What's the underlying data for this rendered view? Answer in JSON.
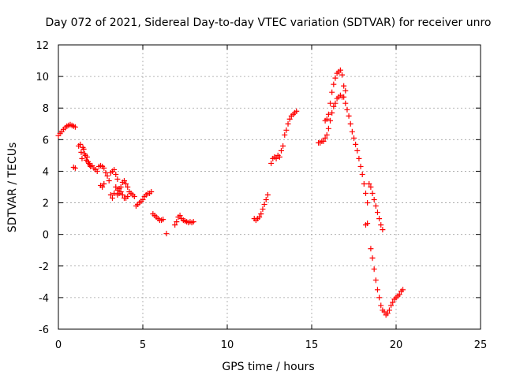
{
  "chart_data": {
    "type": "scatter",
    "title": "Day 072 of 2021, Sidereal Day-to-day VTEC variation (SDTVAR) for receiver unro",
    "xlabel": "GPS time / hours",
    "ylabel": "SDTVAR / TECUs",
    "xlim": [
      0,
      25
    ],
    "ylim": [
      -6,
      12
    ],
    "xticks": [
      0,
      5,
      10,
      15,
      20,
      25
    ],
    "yticks": [
      -6,
      -4,
      -2,
      0,
      2,
      4,
      6,
      8,
      10,
      12
    ],
    "xtick_labels": [
      "0",
      "5",
      "10",
      "15",
      "20",
      "25"
    ],
    "ytick_labels": [
      "-6",
      "-4",
      "-2",
      "0",
      "2",
      "4",
      "6",
      "8",
      "10",
      "12"
    ],
    "grid": true,
    "marker": "+",
    "color": "#ff0000",
    "series": [
      {
        "name": "SDTVAR",
        "segments": [
          [
            [
              0.0,
              6.25
            ],
            [
              0.1,
              6.4
            ],
            [
              0.2,
              6.5
            ],
            [
              0.3,
              6.65
            ],
            [
              0.4,
              6.75
            ],
            [
              0.5,
              6.85
            ],
            [
              0.6,
              6.9
            ],
            [
              0.7,
              6.95
            ],
            [
              0.8,
              6.9
            ],
            [
              0.9,
              6.85
            ],
            [
              1.0,
              6.8
            ]
          ],
          [
            [
              0.9,
              4.25
            ],
            [
              1.0,
              4.2
            ]
          ],
          [
            [
              1.2,
              5.6
            ],
            [
              1.3,
              5.7
            ],
            [
              1.35,
              5.2
            ],
            [
              1.4,
              4.8
            ],
            [
              1.45,
              5.5
            ],
            [
              1.5,
              5.4
            ],
            [
              1.55,
              5.1
            ],
            [
              1.6,
              5.0
            ],
            [
              1.65,
              4.7
            ],
            [
              1.7,
              4.9
            ],
            [
              1.75,
              4.6
            ],
            [
              1.8,
              4.5
            ],
            [
              1.85,
              4.4
            ],
            [
              1.9,
              4.3
            ],
            [
              2.0,
              4.35
            ],
            [
              2.1,
              4.2
            ],
            [
              2.2,
              4.1
            ],
            [
              2.3,
              4.0
            ],
            [
              2.4,
              4.3
            ],
            [
              2.5,
              4.35
            ],
            [
              2.6,
              4.3
            ],
            [
              2.7,
              4.2
            ],
            [
              2.8,
              3.9
            ],
            [
              2.9,
              3.7
            ],
            [
              3.0,
              3.4
            ],
            [
              3.1,
              3.9
            ],
            [
              3.2,
              4.0
            ],
            [
              3.3,
              4.1
            ],
            [
              3.4,
              3.8
            ],
            [
              3.5,
              3.5
            ]
          ],
          [
            [
              2.5,
              3.1
            ],
            [
              2.6,
              3.0
            ],
            [
              2.7,
              3.2
            ]
          ],
          [
            [
              3.1,
              2.5
            ],
            [
              3.2,
              2.3
            ],
            [
              3.3,
              2.6
            ],
            [
              3.4,
              3.0
            ],
            [
              3.5,
              2.8
            ],
            [
              3.6,
              2.9
            ],
            [
              3.7,
              3.0
            ],
            [
              3.8,
              3.3
            ],
            [
              3.9,
              3.4
            ],
            [
              4.0,
              3.2
            ],
            [
              4.1,
              3.0
            ],
            [
              4.2,
              2.7
            ],
            [
              4.3,
              2.6
            ],
            [
              4.4,
              2.5
            ],
            [
              4.5,
              2.4
            ]
          ],
          [
            [
              3.5,
              2.5
            ],
            [
              3.6,
              2.6
            ],
            [
              3.7,
              2.7
            ],
            [
              3.8,
              2.5
            ],
            [
              3.9,
              2.3
            ],
            [
              4.0,
              2.3
            ],
            [
              4.1,
              2.4
            ]
          ],
          [
            [
              4.6,
              1.8
            ],
            [
              4.7,
              1.9
            ],
            [
              4.8,
              2.0
            ],
            [
              4.9,
              2.1
            ],
            [
              5.0,
              2.2
            ],
            [
              5.1,
              2.4
            ],
            [
              5.2,
              2.5
            ],
            [
              5.3,
              2.6
            ],
            [
              5.4,
              2.6
            ],
            [
              5.5,
              2.7
            ]
          ],
          [
            [
              5.6,
              1.3
            ],
            [
              5.7,
              1.2
            ],
            [
              5.8,
              1.1
            ],
            [
              5.9,
              1.0
            ],
            [
              6.0,
              0.9
            ],
            [
              6.1,
              0.9
            ],
            [
              6.2,
              0.95
            ]
          ],
          [
            [
              6.4,
              0.05
            ]
          ],
          [
            [
              6.9,
              0.6
            ],
            [
              7.0,
              0.8
            ],
            [
              7.1,
              1.1
            ],
            [
              7.2,
              1.2
            ],
            [
              7.3,
              1.0
            ],
            [
              7.4,
              0.9
            ],
            [
              7.5,
              0.85
            ],
            [
              7.6,
              0.8
            ],
            [
              7.7,
              0.75
            ],
            [
              7.8,
              0.8
            ],
            [
              7.9,
              0.75
            ],
            [
              8.0,
              0.8
            ]
          ],
          [
            [
              11.6,
              1.0
            ],
            [
              11.7,
              0.9
            ],
            [
              11.8,
              1.0
            ],
            [
              11.9,
              1.1
            ],
            [
              12.0,
              1.3
            ],
            [
              12.1,
              1.6
            ],
            [
              12.2,
              1.9
            ],
            [
              12.3,
              2.2
            ],
            [
              12.4,
              2.5
            ]
          ],
          [
            [
              12.6,
              4.5
            ],
            [
              12.7,
              4.8
            ],
            [
              12.8,
              4.9
            ],
            [
              12.9,
              4.8
            ],
            [
              13.0,
              5.0
            ],
            [
              13.1,
              4.9
            ],
            [
              13.2,
              5.3
            ],
            [
              13.3,
              5.6
            ]
          ],
          [
            [
              13.4,
              6.3
            ],
            [
              13.5,
              6.6
            ],
            [
              13.6,
              7.0
            ],
            [
              13.7,
              7.3
            ],
            [
              13.8,
              7.5
            ],
            [
              13.9,
              7.6
            ],
            [
              14.0,
              7.7
            ],
            [
              14.1,
              7.8
            ]
          ],
          [
            [
              15.4,
              5.8
            ],
            [
              15.5,
              5.8
            ],
            [
              15.6,
              5.9
            ],
            [
              15.7,
              5.9
            ],
            [
              15.8,
              6.1
            ],
            [
              15.9,
              6.3
            ],
            [
              16.0,
              6.7
            ],
            [
              16.1,
              7.2
            ],
            [
              16.2,
              7.7
            ],
            [
              16.3,
              8.1
            ],
            [
              16.4,
              8.3
            ],
            [
              16.5,
              8.6
            ],
            [
              16.6,
              8.7
            ],
            [
              16.7,
              8.8
            ],
            [
              16.8,
              8.7
            ]
          ],
          [
            [
              15.8,
              7.2
            ],
            [
              15.9,
              7.3
            ],
            [
              16.0,
              7.6
            ],
            [
              16.1,
              8.3
            ],
            [
              16.2,
              9.0
            ],
            [
              16.3,
              9.5
            ],
            [
              16.4,
              9.9
            ],
            [
              16.5,
              10.2
            ],
            [
              16.6,
              10.3
            ],
            [
              16.7,
              10.4
            ],
            [
              16.8,
              10.1
            ],
            [
              16.9,
              9.4
            ],
            [
              17.0,
              9.1
            ]
          ],
          [
            [
              16.9,
              8.7
            ],
            [
              17.0,
              8.3
            ],
            [
              17.1,
              7.9
            ],
            [
              17.2,
              7.5
            ],
            [
              17.3,
              7.0
            ],
            [
              17.4,
              6.5
            ],
            [
              17.5,
              6.1
            ],
            [
              17.6,
              5.7
            ],
            [
              17.7,
              5.3
            ],
            [
              17.8,
              4.8
            ],
            [
              17.9,
              4.3
            ],
            [
              18.0,
              3.8
            ],
            [
              18.1,
              3.2
            ],
            [
              18.2,
              2.6
            ],
            [
              18.3,
              2.0
            ]
          ],
          [
            [
              18.2,
              0.6
            ],
            [
              18.3,
              0.7
            ]
          ],
          [
            [
              18.4,
              3.2
            ],
            [
              18.5,
              3.0
            ],
            [
              18.6,
              2.6
            ],
            [
              18.7,
              2.2
            ],
            [
              18.8,
              1.8
            ],
            [
              18.9,
              1.4
            ],
            [
              19.0,
              1.0
            ],
            [
              19.1,
              0.6
            ],
            [
              19.2,
              0.3
            ]
          ],
          [
            [
              18.5,
              -0.9
            ],
            [
              18.6,
              -1.5
            ],
            [
              18.7,
              -2.2
            ],
            [
              18.8,
              -2.9
            ],
            [
              18.9,
              -3.5
            ],
            [
              19.0,
              -4.0
            ],
            [
              19.1,
              -4.5
            ],
            [
              19.2,
              -4.8
            ],
            [
              19.3,
              -4.9
            ],
            [
              19.4,
              -5.1
            ],
            [
              19.5,
              -5.0
            ],
            [
              19.6,
              -4.8
            ],
            [
              19.7,
              -4.5
            ],
            [
              19.8,
              -4.3
            ],
            [
              19.9,
              -4.1
            ],
            [
              20.0,
              -4.0
            ],
            [
              20.1,
              -3.9
            ],
            [
              20.2,
              -3.8
            ],
            [
              20.3,
              -3.6
            ],
            [
              20.4,
              -3.5
            ]
          ]
        ]
      }
    ]
  }
}
